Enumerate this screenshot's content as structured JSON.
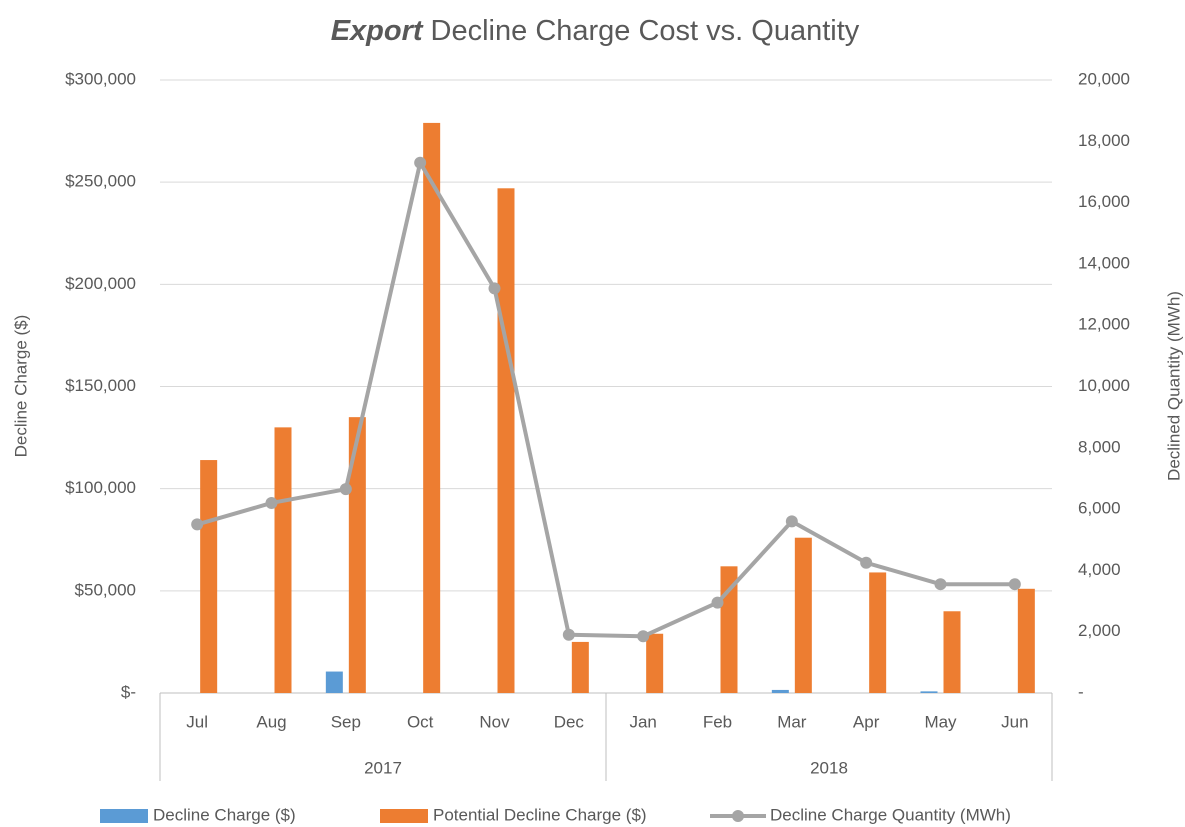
{
  "chart_data": {
    "type": "bar",
    "title": [
      "Export",
      "Decline Charge Cost vs. Quantity"
    ],
    "y_label": "Decline Charge ($)",
    "y2_label": "Declined Quantity (MWh)",
    "categories": [
      "Jul",
      "Aug",
      "Sep",
      "Oct",
      "Nov",
      "Dec",
      "Jan",
      "Feb",
      "Mar",
      "Apr",
      "May",
      "Jun"
    ],
    "category_groups": [
      {
        "label": "2017",
        "size": 6
      },
      {
        "label": "2018",
        "size": 6
      }
    ],
    "series": [
      {
        "name": "Decline Charge ($)",
        "type": "bar",
        "color": "#5b9bd5",
        "values": [
          0,
          0,
          10500,
          0,
          0,
          0,
          0,
          0,
          1500,
          0,
          800,
          0
        ]
      },
      {
        "name": "Potential Decline Charge ($)",
        "type": "bar",
        "color": "#ed7d31",
        "values": [
          114000,
          130000,
          135000,
          279000,
          247000,
          25000,
          29000,
          62000,
          76000,
          59000,
          40000,
          51000
        ]
      },
      {
        "name": "Decline Charge Quantity (MWh)",
        "type": "line",
        "axis": "y2",
        "color": "#a5a5a5",
        "values": [
          5500,
          6200,
          6650,
          17300,
          13200,
          1900,
          1850,
          2950,
          5600,
          4250,
          3550,
          3550
        ]
      }
    ],
    "ylim": [
      0,
      300000
    ],
    "yticks": [
      {
        "value": 0,
        "label": "$-"
      },
      {
        "value": 50000,
        "label": "$50,000"
      },
      {
        "value": 100000,
        "label": "$100,000"
      },
      {
        "value": 150000,
        "label": "$150,000"
      },
      {
        "value": 200000,
        "label": "$200,000"
      },
      {
        "value": 250000,
        "label": "$250,000"
      },
      {
        "value": 300000,
        "label": "$300,000"
      }
    ],
    "y2lim": [
      0,
      20000
    ],
    "y2ticks": [
      {
        "value": 0,
        "label": "-"
      },
      {
        "value": 2000,
        "label": "2,000"
      },
      {
        "value": 4000,
        "label": "4,000"
      },
      {
        "value": 6000,
        "label": "6,000"
      },
      {
        "value": 8000,
        "label": "8,000"
      },
      {
        "value": 10000,
        "label": "10,000"
      },
      {
        "value": 12000,
        "label": "12,000"
      },
      {
        "value": 14000,
        "label": "14,000"
      },
      {
        "value": 16000,
        "label": "16,000"
      },
      {
        "value": 18000,
        "label": "18,000"
      },
      {
        "value": 20000,
        "label": "20,000"
      }
    ],
    "grid": true,
    "legend": "bottom"
  }
}
